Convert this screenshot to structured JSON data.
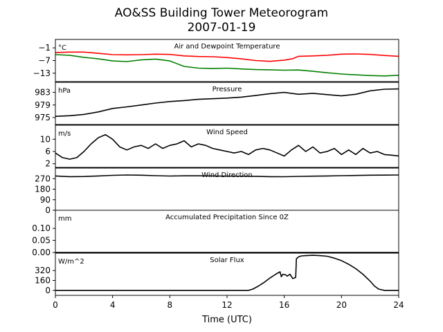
{
  "figure": {
    "title_line1": "AO&SS Building Tower Meteorogram",
    "title_line2": "2007-01-19",
    "xlabel": "Time (UTC)",
    "xlim": [
      0,
      24
    ],
    "xticks": [
      "0",
      "4",
      "8",
      "12",
      "16",
      "20",
      "24"
    ]
  },
  "chart_data": [
    {
      "type": "line",
      "title": "Air and Dewpoint Temperature",
      "unit": "°C",
      "ylim": [
        -17,
        3
      ],
      "yticks": [
        -1,
        -7,
        -13
      ],
      "ytick_labels": [
        "−1",
        "−7",
        "−13"
      ],
      "series": [
        {
          "key": "air",
          "color": "#ff0000",
          "x": [
            0,
            1,
            2,
            3,
            4,
            5,
            6,
            7,
            8,
            9,
            10,
            11,
            12,
            13,
            14,
            15,
            16,
            16.6,
            17,
            18,
            19,
            20,
            21,
            22,
            23,
            24
          ],
          "y": [
            -3.2,
            -3.0,
            -3.0,
            -3.6,
            -4.2,
            -4.3,
            -4.2,
            -4.0,
            -4.1,
            -4.8,
            -5.1,
            -5.2,
            -5.6,
            -6.2,
            -7.0,
            -7.4,
            -6.8,
            -6.1,
            -5.0,
            -4.8,
            -4.5,
            -4.0,
            -3.9,
            -4.1,
            -4.6,
            -5.0
          ]
        },
        {
          "key": "dew",
          "color": "#008000",
          "x": [
            0,
            1,
            2,
            3,
            4,
            5,
            6,
            7,
            8,
            9,
            10,
            11,
            12,
            13,
            14,
            15,
            16,
            17,
            18,
            19,
            20,
            21,
            22,
            23,
            24
          ],
          "y": [
            -4.2,
            -4.5,
            -5.5,
            -6.2,
            -7.2,
            -7.5,
            -6.7,
            -6.3,
            -7.2,
            -9.8,
            -10.6,
            -10.8,
            -10.6,
            -11.0,
            -11.3,
            -11.4,
            -11.6,
            -11.5,
            -12.1,
            -12.8,
            -13.4,
            -13.8,
            -14.1,
            -14.3,
            -14.0
          ]
        }
      ]
    },
    {
      "type": "line",
      "title": "Pressure",
      "unit": "hPa",
      "ylim": [
        972.8,
        986.2
      ],
      "yticks": [
        975,
        979,
        983
      ],
      "ytick_labels": [
        "975",
        "979",
        "983"
      ],
      "series": [
        {
          "key": "pressure",
          "color": "#000000",
          "x": [
            0,
            1,
            2,
            3,
            4,
            5,
            6,
            7,
            8,
            9,
            10,
            11,
            12,
            13,
            14,
            15,
            16,
            17,
            18,
            19,
            20,
            21,
            22,
            23,
            24
          ],
          "y": [
            975.4,
            975.6,
            976.0,
            976.8,
            977.9,
            978.4,
            979.0,
            979.6,
            980.1,
            980.4,
            980.8,
            981.0,
            981.2,
            981.5,
            982.0,
            982.6,
            983.0,
            982.4,
            982.7,
            982.3,
            981.9,
            982.4,
            983.5,
            984.0,
            984.1
          ]
        }
      ]
    },
    {
      "type": "line",
      "title": "Wind Speed",
      "unit": "m/s",
      "ylim": [
        0.8,
        14.6
      ],
      "yticks": [
        2,
        6,
        10
      ],
      "ytick_labels": [
        "2",
        "6",
        "10"
      ],
      "series": [
        {
          "key": "wind_speed",
          "color": "#000000",
          "x": [
            0,
            0.5,
            1,
            1.5,
            2,
            2.5,
            3,
            3.5,
            4,
            4.5,
            5,
            5.5,
            6,
            6.5,
            7,
            7.5,
            8,
            8.5,
            9,
            9.5,
            10,
            10.5,
            11,
            11.5,
            12,
            12.5,
            13,
            13.5,
            14,
            14.5,
            15,
            15.5,
            16,
            16.5,
            17,
            17.5,
            18,
            18.5,
            19,
            19.5,
            20,
            20.5,
            21,
            21.5,
            22,
            22.5,
            23,
            23.5,
            24
          ],
          "y": [
            5.5,
            4.0,
            3.5,
            4.0,
            6.0,
            8.5,
            10.5,
            11.5,
            10.0,
            7.5,
            6.5,
            7.5,
            8.0,
            7.0,
            8.5,
            7.0,
            8.0,
            8.5,
            9.5,
            7.5,
            8.5,
            8.0,
            7.0,
            6.5,
            6.0,
            5.5,
            6.0,
            5.0,
            6.5,
            7.0,
            6.5,
            5.5,
            4.5,
            6.5,
            8.0,
            6.0,
            7.5,
            5.5,
            6.0,
            7.0,
            5.0,
            6.5,
            5.0,
            7.0,
            5.5,
            6.0,
            5.0,
            4.8,
            4.5
          ]
        }
      ]
    },
    {
      "type": "line",
      "title": "Wind Direction",
      "unit": "",
      "ylim": [
        0,
        360
      ],
      "yticks": [
        0,
        90,
        180,
        270
      ],
      "ytick_labels": [
        "0",
        "90",
        "180",
        "270"
      ],
      "series": [
        {
          "key": "wind_direction",
          "color": "#000000",
          "x": [
            0,
            1,
            2,
            3,
            4,
            5,
            6,
            7,
            8,
            9,
            10,
            11,
            12,
            13,
            14,
            15,
            16,
            17,
            18,
            19,
            20,
            21,
            22,
            23,
            24
          ],
          "y": [
            293,
            287,
            288,
            293,
            298,
            301,
            299,
            295,
            292,
            294,
            294,
            293,
            291,
            291,
            290,
            287,
            286,
            289,
            291,
            293,
            295,
            297,
            299,
            300,
            301
          ]
        }
      ]
    },
    {
      "type": "line",
      "title": "Accumulated Precipitation Since 0Z",
      "unit": "mm",
      "ylim": [
        0,
        0.175
      ],
      "yticks": [
        0,
        0.05,
        0.1
      ],
      "ytick_labels": [
        "0.00",
        "0.05",
        "0.10"
      ],
      "series": [
        {
          "key": "precip",
          "color": "#000000",
          "x": [
            0,
            24
          ],
          "y": [
            0,
            0
          ]
        }
      ]
    },
    {
      "type": "line",
      "title": "Solar Flux",
      "unit": "W/m^2",
      "ylim": [
        -80,
        600
      ],
      "yticks": [
        0,
        160,
        320
      ],
      "ytick_labels": [
        "0",
        "160",
        "320"
      ],
      "series": [
        {
          "key": "solar",
          "color": "#000000",
          "x": [
            0,
            13.5,
            13.8,
            14.2,
            14.6,
            15.0,
            15.4,
            15.7,
            15.8,
            15.9,
            16.1,
            16.2,
            16.4,
            16.6,
            16.8,
            16.85,
            17.0,
            17.2,
            17.5,
            18.0,
            18.5,
            19.0,
            19.5,
            20.0,
            20.5,
            21.0,
            21.5,
            22.0,
            22.3,
            22.6,
            23.0,
            24.0
          ],
          "y": [
            0,
            0,
            20,
            70,
            130,
            200,
            260,
            300,
            220,
            260,
            250,
            230,
            260,
            190,
            210,
            510,
            540,
            555,
            560,
            565,
            560,
            550,
            520,
            480,
            420,
            350,
            260,
            150,
            70,
            20,
            0,
            0
          ]
        }
      ]
    }
  ]
}
